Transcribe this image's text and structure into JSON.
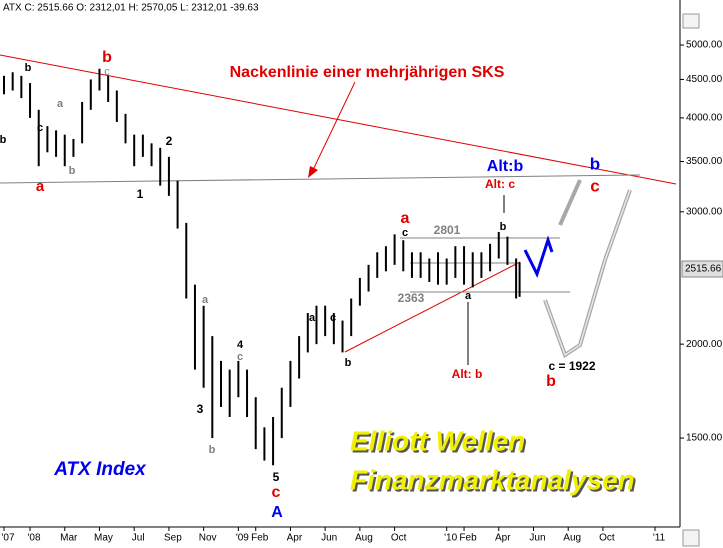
{
  "chart_data": {
    "type": "ohlc",
    "header": "ATX C: 2515.66 O: 2312,01 H: 2570,05 L: 2312,01 -39.63",
    "last_price_label": "2515.66",
    "log_scale": true,
    "color": "#000000",
    "x": [
      -1.5,
      -1,
      -0.5,
      0,
      0.5,
      1,
      1.5,
      2,
      2.5,
      3,
      3.5,
      4,
      4.5,
      5,
      5.5,
      6,
      6.5,
      7,
      7.5,
      8,
      8.5,
      9,
      9.5,
      10,
      10.5,
      11,
      11.5,
      12,
      12.5,
      13,
      13.5,
      14,
      14.5,
      15,
      15.5,
      16,
      16.5,
      17,
      17.5,
      18,
      18.5,
      19,
      19.5,
      20,
      20.5,
      21,
      21.5,
      22,
      22.5,
      23,
      23.5,
      24,
      24.5,
      25,
      25.5,
      26,
      26.5,
      27,
      27.5,
      28,
      28.2
    ],
    "high": [
      4550,
      4600,
      4550,
      4450,
      4100,
      3900,
      3850,
      3800,
      3750,
      4200,
      4500,
      4650,
      4550,
      4350,
      4050,
      3800,
      3800,
      3700,
      3650,
      3550,
      3300,
      2900,
      2400,
      2250,
      2050,
      1900,
      1850,
      1900,
      1850,
      1700,
      1550,
      1600,
      1750,
      1900,
      2050,
      2200,
      2250,
      2250,
      2200,
      2150,
      2300,
      2450,
      2550,
      2650,
      2700,
      2800,
      2750,
      2650,
      2650,
      2600,
      2650,
      2600,
      2700,
      2700,
      2650,
      2650,
      2720,
      2820,
      2780,
      2600,
      2570.05
    ],
    "low": [
      4300,
      4350,
      4250,
      4000,
      3450,
      3600,
      3550,
      3450,
      3550,
      3700,
      4100,
      4350,
      4200,
      3950,
      3700,
      3450,
      3550,
      3450,
      3250,
      3150,
      2850,
      2300,
      1850,
      1750,
      1500,
      1650,
      1600,
      1700,
      1600,
      1450,
      1400,
      1380,
      1500,
      1650,
      1800,
      1950,
      2000,
      2050,
      2000,
      1950,
      2050,
      2250,
      2350,
      2450,
      2500,
      2550,
      2500,
      2450,
      2450,
      2420,
      2400,
      2400,
      2450,
      2400,
      2380,
      2450,
      2500,
      2600,
      2550,
      2300,
      2312.01
    ],
    "xlim": [
      -1.73,
      37.44
    ],
    "xticks": [
      {
        "value": -1.5,
        "label": "'07"
      },
      {
        "value": 0,
        "label": "'08"
      },
      {
        "value": 2,
        "label": "Mar"
      },
      {
        "value": 4,
        "label": "May"
      },
      {
        "value": 6,
        "label": "Jul"
      },
      {
        "value": 8,
        "label": "Sep"
      },
      {
        "value": 10,
        "label": "Nov"
      },
      {
        "value": 12,
        "label": "'09"
      },
      {
        "value": 13,
        "label": "Feb"
      },
      {
        "value": 15,
        "label": "Apr"
      },
      {
        "value": 17,
        "label": "Jun"
      },
      {
        "value": 19,
        "label": "Aug"
      },
      {
        "value": 21,
        "label": "Oct"
      },
      {
        "value": 24,
        "label": "'10"
      },
      {
        "value": 25,
        "label": "Feb"
      },
      {
        "value": 27,
        "label": "Apr"
      },
      {
        "value": 29,
        "label": "Jun"
      },
      {
        "value": 31,
        "label": "Aug"
      },
      {
        "value": 33,
        "label": "Oct"
      },
      {
        "value": 36,
        "label": "'11"
      }
    ],
    "ylim": [
      1167,
      5740
    ],
    "yticks": [
      {
        "value": 1500,
        "label": "1500.00"
      },
      {
        "value": 2000,
        "label": "2000.00"
      },
      {
        "value": 3000,
        "label": "3000.00"
      },
      {
        "value": 3500,
        "label": "3500.00"
      },
      {
        "value": 4000,
        "label": "4000.00"
      },
      {
        "value": 4500,
        "label": "4500.00"
      },
      {
        "value": 5000,
        "label": "5000.00"
      }
    ],
    "annotations": [
      "b",
      "c",
      "b",
      "a",
      "b",
      "c",
      "a",
      "b",
      "1",
      "2",
      "a",
      "4",
      "c",
      "3",
      "b",
      "5",
      "c",
      "A",
      "a",
      "c",
      "b",
      "a",
      "c",
      "2801",
      "2363",
      "a",
      "Alt: b",
      "Alt:b",
      "Alt: c",
      "b",
      "b",
      "c",
      "c = 1922",
      "b",
      "Nackenlinie einer mehrjährigen SKS",
      "ATX Index",
      "Elliott Wellen",
      "Finanzmarktanalysen"
    ]
  }
}
